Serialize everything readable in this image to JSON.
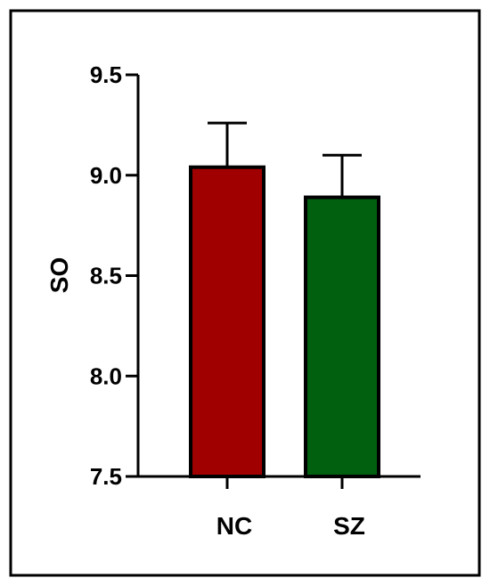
{
  "chart_data": {
    "type": "bar",
    "categories": [
      "NC",
      "SZ"
    ],
    "series": [
      {
        "values": [
          9.04,
          8.89
        ],
        "errors": [
          0.22,
          0.21
        ],
        "colors": [
          "#a00000",
          "#006010"
        ]
      }
    ],
    "ylabel": "SO",
    "xlabel": "",
    "ylim": [
      7.5,
      9.5
    ],
    "yticks": [
      "7.5",
      "8.0",
      "8.5",
      "9.0",
      "9.5"
    ],
    "grid": false,
    "legend": "none",
    "frame_color": "#000000"
  }
}
